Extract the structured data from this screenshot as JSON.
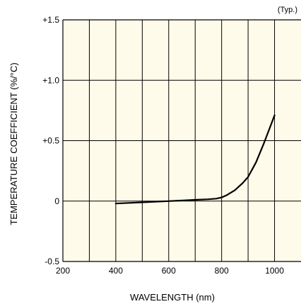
{
  "chart_data": {
    "type": "line",
    "title": "",
    "annotation": "(Typ.)",
    "xlabel": "WAVELENGTH (nm)",
    "ylabel": "TEMPERATURE COEFFICIENT (%/°C)",
    "xlim": [
      200,
      1100
    ],
    "ylim": [
      -0.5,
      1.5
    ],
    "xticks": [
      200,
      400,
      600,
      800,
      1000
    ],
    "xtick_labels": [
      "200",
      "400",
      "600",
      "800",
      "1000"
    ],
    "yticks": [
      -0.5,
      0,
      0.5,
      1.0,
      1.5
    ],
    "ytick_labels": [
      "-0.5",
      "0",
      "+0.5",
      "+1.0",
      "+1.5"
    ],
    "grid": true,
    "plot_background": "#fffbea",
    "line_color": "#000000",
    "series": [
      {
        "x": [
          400,
          500,
          600,
          700,
          750,
          780,
          800,
          820,
          850,
          880,
          900,
          930,
          960,
          1000
        ],
        "y": [
          -0.02,
          -0.01,
          0.0,
          0.01,
          0.015,
          0.02,
          0.03,
          0.05,
          0.09,
          0.15,
          0.2,
          0.32,
          0.48,
          0.71
        ]
      }
    ]
  }
}
